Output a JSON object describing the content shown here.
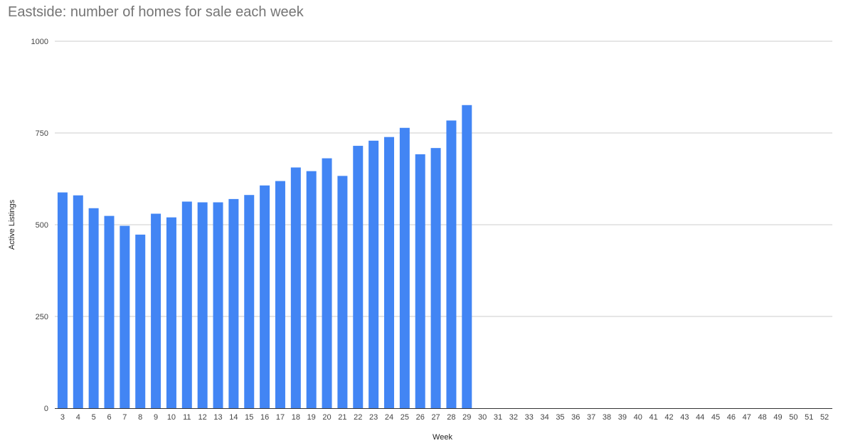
{
  "colors": {
    "bar": "#4285f4",
    "grid": "#cccccc",
    "baseline": "#333333",
    "tick_text": "#444444"
  },
  "chart_data": {
    "type": "bar",
    "title": "Eastside: number of homes for sale each week",
    "xlabel": "Week",
    "ylabel": "Active Listings",
    "ylim": [
      0,
      1000
    ],
    "yticks": [
      "0",
      "250",
      "500",
      "750",
      "1000"
    ],
    "grid": true,
    "legend": "none",
    "categories": [
      "3",
      "4",
      "5",
      "6",
      "7",
      "8",
      "9",
      "10",
      "11",
      "12",
      "13",
      "14",
      "15",
      "16",
      "17",
      "18",
      "19",
      "20",
      "21",
      "22",
      "23",
      "24",
      "25",
      "26",
      "27",
      "28",
      "29",
      "30",
      "31",
      "32",
      "33",
      "34",
      "35",
      "36",
      "37",
      "38",
      "39",
      "40",
      "41",
      "42",
      "43",
      "44",
      "45",
      "46",
      "47",
      "48",
      "49",
      "50",
      "51",
      "52"
    ],
    "values": [
      588,
      580,
      545,
      524,
      497,
      473,
      530,
      520,
      563,
      561,
      561,
      570,
      581,
      607,
      619,
      656,
      646,
      681,
      633,
      715,
      729,
      739,
      764,
      692,
      709,
      784,
      826,
      null,
      null,
      null,
      null,
      null,
      null,
      null,
      null,
      null,
      null,
      null,
      null,
      null,
      null,
      null,
      null,
      null,
      null,
      null,
      null,
      null,
      null,
      null
    ]
  }
}
